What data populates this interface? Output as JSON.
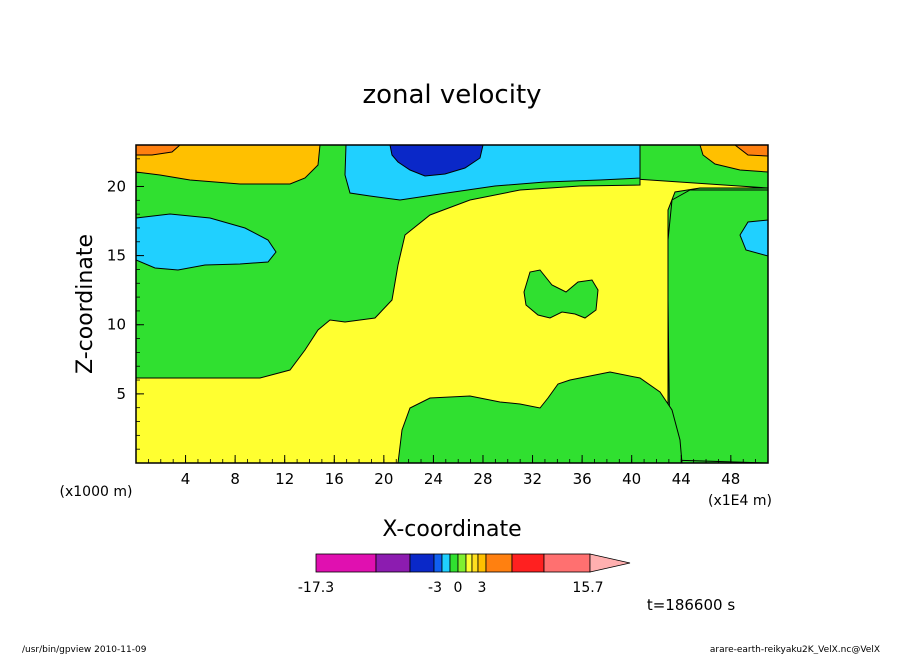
{
  "chart_data": {
    "type": "heatmap",
    "title": "zonal velocity",
    "xlabel": "X-coordinate",
    "ylabel": "Z-coordinate",
    "x_unit_label": "(x1E4 m)",
    "y_unit_label": "(x1000 m)",
    "xlim": [
      0,
      51
    ],
    "ylim": [
      0,
      23
    ],
    "x_ticks": [
      "4",
      "8",
      "12",
      "16",
      "20",
      "24",
      "28",
      "32",
      "36",
      "40",
      "44",
      "48"
    ],
    "y_ticks": [
      "5",
      "10",
      "15",
      "20"
    ],
    "colorbar": {
      "min_label": "-17.3",
      "mid_labels": [
        "-3",
        "0",
        "3"
      ],
      "max_label": "15.7",
      "colors": [
        "#e010b0",
        "#8c1cb0",
        "#0a28c8",
        "#1060f0",
        "#20d0ff",
        "#30e030",
        "#80f030",
        "#ffff30",
        "#ffe020",
        "#ffc000",
        "#ff8010",
        "#ff2020",
        "#ff7070",
        "#ffb0b0"
      ]
    },
    "regions": [
      {
        "level": "negative weak",
        "color": "#30e030"
      },
      {
        "level": "near zero",
        "color": "#ffff30"
      },
      {
        "level": "negative",
        "color": "#20d0ff"
      },
      {
        "level": "strong negative",
        "color": "#0a28c8"
      },
      {
        "level": "positive",
        "color": "#ffc000"
      },
      {
        "level": "positive strong",
        "color": "#ff8010"
      }
    ]
  },
  "annotations": {
    "time": "t=186600 s",
    "footer_left": "/usr/bin/gpview  2010-11-09",
    "footer_right": "arare-earth-reikyaku2K_VelX.nc@VelX"
  }
}
